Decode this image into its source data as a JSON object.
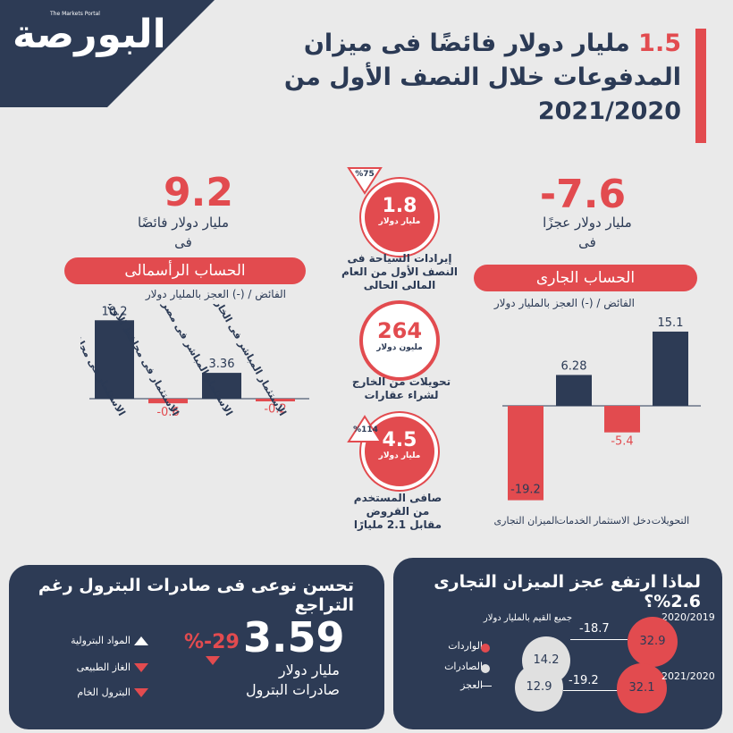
{
  "logo": {
    "text": "البورصة",
    "tag": "The Markets Portal"
  },
  "headline": {
    "num": "1.5",
    "rest": " مليار دولار فائضًا فى ميزان المدفوعات خلال النصف الأول من 2021/2020"
  },
  "capital": {
    "big_value": "9.2",
    "label_1": "مليار دولار فائضًا",
    "label_2": "فى",
    "pill": "الحساب الرأسمالى",
    "axis_note": "الفائض / (-) العجز بالمليار دولار"
  },
  "current": {
    "big_value": "-7.6",
    "label_1": "مليار دولار عجزًا",
    "label_2": "فى",
    "pill": "الحساب الجارى",
    "axis_note": "الفائض / (-) العجز بالمليار دولار"
  },
  "middle": {
    "tourism": {
      "badge": "%75",
      "value": "1.8",
      "unit": "مليار دولار",
      "caption": "إيرادات السياحة فى النصف الأول من العام المالى الحالى"
    },
    "remit": {
      "value": "264",
      "unit": "مليون دولار",
      "caption": "تحويلات من الخارج لشراء عقارات"
    },
    "loans": {
      "badge": "%114",
      "value": "4.5",
      "unit": "مليار دولار",
      "caption": "صافى المستخدم من القروض مقابل 2.1 مليارًا"
    }
  },
  "chart_data": [
    {
      "type": "bar",
      "categories": [
        "الاستثمار فى محافظ الأوراق المالية داخل مصر",
        "الاستثمار فى محافظ الأوراق المالية خارج مصر",
        "الاستثمار المباشر فى مصر",
        "الاستثمار المباشر فى الخارج"
      ],
      "values": [
        10.2,
        -0.6,
        3.36,
        -0.2
      ],
      "value_labels": [
        "10.2",
        "-0.6",
        "3.36",
        "-0.2"
      ],
      "title": "الحساب الرأسمالى",
      "ylabel": "الفائض / (-) العجز بالمليار دولار",
      "ylim": [
        -1,
        11
      ]
    },
    {
      "type": "bar",
      "categories": [
        "الميزان التجارى",
        "الخدمات",
        "دخل الاستثمار",
        "التحويلات"
      ],
      "values": [
        -19.2,
        6.28,
        -5.4,
        15.1
      ],
      "value_labels": [
        "-19.2",
        "6.28",
        "-5.4",
        "15.1"
      ],
      "title": "الحساب الجارى",
      "ylabel": "الفائض / (-) العجز بالمليار دولار",
      "ylim": [
        -20,
        17
      ]
    }
  ],
  "petroleum": {
    "title": "تحسن نوعى فى صادرات البترول رغم التراجع",
    "value": "3.59",
    "change": "%-29",
    "unit": "مليار دولار",
    "caption": "صادرات البترول",
    "legend": [
      "المواد البترولية",
      "الغاز الطبيعى",
      "البترول الخام"
    ]
  },
  "trade": {
    "title": "لماذا ارتفع عجز الميزان التجارى 2.6%؟",
    "note": "جميع القيم بالمليار دولار",
    "legend": [
      "الواردات",
      "الصادرات",
      "العجز"
    ],
    "rows": [
      {
        "year": "2020/2019",
        "imports": "32.9",
        "exports": "14.2",
        "deficit": "-18.7"
      },
      {
        "year": "2021/2020",
        "imports": "32.1",
        "exports": "12.9",
        "deficit": "-19.2"
      }
    ]
  },
  "colors": {
    "navy": "#2d3b55",
    "red": "#e24b4f",
    "bg": "#eaeaea"
  }
}
